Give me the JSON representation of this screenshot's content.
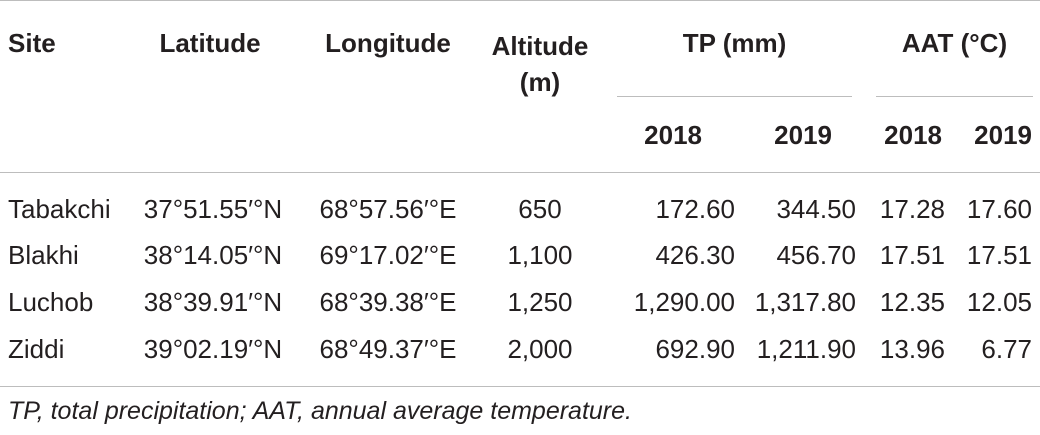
{
  "table": {
    "headers": {
      "site": "Site",
      "latitude": "Latitude",
      "longitude": "Longitude",
      "altitude": "Altitude (m)",
      "tp": "TP (mm)",
      "aat": "AAT (°C)",
      "year_2018": "2018",
      "year_2019": "2019"
    },
    "rows": [
      {
        "site": "Tabakchi",
        "latitude": "37°51.55′°N",
        "longitude": "68°57.56′°E",
        "altitude": "650",
        "tp_2018": "172.60",
        "tp_2019": "344.50",
        "aat_2018": "17.28",
        "aat_2019": "17.60"
      },
      {
        "site": "Blakhi",
        "latitude": "38°14.05′°N",
        "longitude": "69°17.02′°E",
        "altitude": "1,100",
        "tp_2018": "426.30",
        "tp_2019": "456.70",
        "aat_2018": "17.51",
        "aat_2019": "17.51"
      },
      {
        "site": "Luchob",
        "latitude": "38°39.91′°N",
        "longitude": "68°39.38′°E",
        "altitude": "1,250",
        "tp_2018": "1,290.00",
        "tp_2019": "1,317.80",
        "aat_2018": "12.35",
        "aat_2019": "12.05"
      },
      {
        "site": "Ziddi",
        "latitude": "39°02.19′°N",
        "longitude": "68°49.37′°E",
        "altitude": "2,000",
        "tp_2018": "692.90",
        "tp_2019": "1,211.90",
        "aat_2018": "13.96",
        "aat_2019": "6.77"
      }
    ]
  },
  "footnote": "TP, total precipitation; AAT, annual average temperature."
}
